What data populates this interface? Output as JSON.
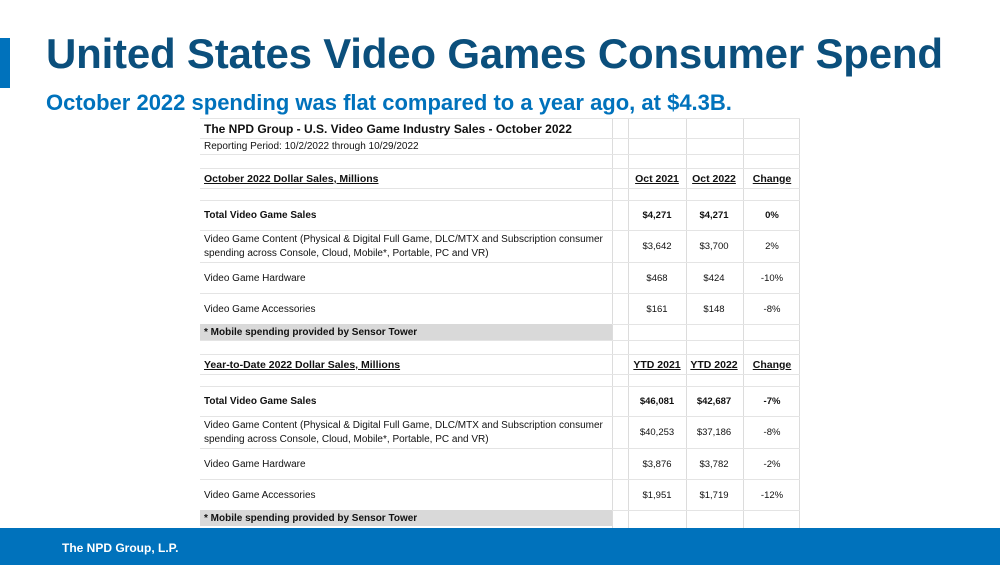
{
  "slide": {
    "title": "United States Video Games Consumer Spend",
    "subtitle": "October 2022 spending was flat compared to a year ago, at $4.3B.",
    "footer": "The NPD Group, L.P."
  },
  "table": {
    "heading": "The NPD Group - U.S. Video Game Industry Sales - October 2022",
    "period": "Reporting Period: 10/2/2022 through 10/29/2022",
    "monthly": {
      "section_label": "October 2022 Dollar Sales, Millions",
      "col_a": "Oct 2021",
      "col_b": "Oct 2022",
      "col_c": "Change",
      "rows": [
        {
          "label": "Total Video Game Sales",
          "a": "$4,271",
          "b": "$4,271",
          "c": "0%"
        },
        {
          "label": "Video Game Content (Physical & Digital Full Game, DLC/MTX and Subscription consumer spending across Console, Cloud, Mobile*, Portable, PC and VR)",
          "a": "$3,642",
          "b": "$3,700",
          "c": "2%"
        },
        {
          "label": "Video Game Hardware",
          "a": "$468",
          "b": "$424",
          "c": "-10%"
        },
        {
          "label": "Video Game Accessories",
          "a": "$161",
          "b": "$148",
          "c": "-8%"
        }
      ],
      "note": "* Mobile spending provided by Sensor Tower"
    },
    "ytd": {
      "section_label": "Year-to-Date 2022 Dollar Sales, Millions",
      "col_a": "YTD 2021",
      "col_b": "YTD 2022",
      "col_c": "Change",
      "rows": [
        {
          "label": "Total Video Game Sales",
          "a": "$46,081",
          "b": "$42,687",
          "c": "-7%"
        },
        {
          "label": "Video Game Content (Physical & Digital Full Game, DLC/MTX and Subscription consumer spending across Console, Cloud, Mobile*, Portable, PC and VR)",
          "a": "$40,253",
          "b": "$37,186",
          "c": "-8%"
        },
        {
          "label": "Video Game Hardware",
          "a": "$3,876",
          "b": "$3,782",
          "c": "-2%"
        },
        {
          "label": "Video Game Accessories",
          "a": "$1,951",
          "b": "$1,719",
          "c": "-12%"
        }
      ],
      "note": "* Mobile spending provided by Sensor Tower"
    }
  }
}
